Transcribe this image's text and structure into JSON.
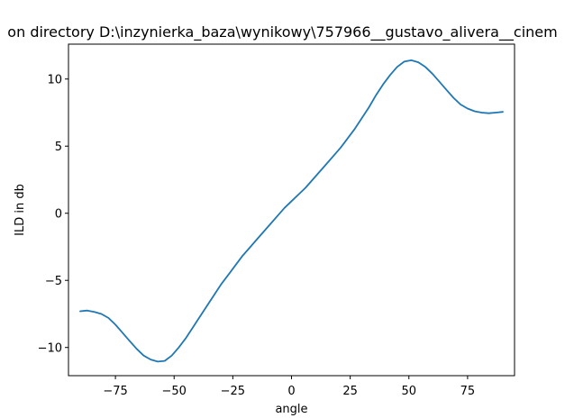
{
  "chart_data": {
    "type": "line",
    "title": "on directory D:\\inzynierka_baza\\wynikowy\\757966__gustavo_alivera__cinem",
    "xlabel": "angle",
    "ylabel": "ILD in db",
    "xlim": [
      -95,
      95
    ],
    "ylim": [
      -12.1,
      12.6
    ],
    "xticks": [
      -75,
      -50,
      -25,
      0,
      25,
      50,
      75
    ],
    "xtick_labels": [
      "−75",
      "−50",
      "−25",
      "0",
      "25",
      "50",
      "75"
    ],
    "yticks": [
      -10,
      -5,
      0,
      5,
      10
    ],
    "ytick_labels": [
      "−10",
      "−5",
      "0",
      "5",
      "10"
    ],
    "grid": false,
    "series": [
      {
        "color": "#1f77b4",
        "x": [
          -90,
          -87,
          -84,
          -81,
          -78,
          -75,
          -72,
          -69,
          -66,
          -63,
          -60,
          -57,
          -54,
          -51,
          -48,
          -45,
          -42,
          -39,
          -36,
          -33,
          -30,
          -27,
          -24,
          -21,
          -18,
          -15,
          -12,
          -9,
          -6,
          -3,
          0,
          3,
          6,
          9,
          12,
          15,
          18,
          21,
          24,
          27,
          30,
          33,
          36,
          39,
          42,
          45,
          48,
          51,
          54,
          57,
          60,
          63,
          66,
          69,
          72,
          75,
          78,
          81,
          84,
          87,
          90
        ],
        "y": [
          -7.3,
          -7.25,
          -7.35,
          -7.5,
          -7.8,
          -8.3,
          -8.9,
          -9.5,
          -10.1,
          -10.6,
          -10.9,
          -11.05,
          -11.0,
          -10.6,
          -10.0,
          -9.3,
          -8.5,
          -7.7,
          -6.9,
          -6.1,
          -5.3,
          -4.6,
          -3.9,
          -3.2,
          -2.6,
          -2.0,
          -1.4,
          -0.8,
          -0.2,
          0.4,
          0.9,
          1.4,
          1.9,
          2.5,
          3.1,
          3.7,
          4.3,
          4.9,
          5.6,
          6.3,
          7.1,
          7.9,
          8.8,
          9.6,
          10.3,
          10.9,
          11.3,
          11.4,
          11.25,
          10.9,
          10.4,
          9.8,
          9.2,
          8.6,
          8.1,
          7.8,
          7.6,
          7.5,
          7.45,
          7.5,
          7.55
        ]
      }
    ]
  }
}
